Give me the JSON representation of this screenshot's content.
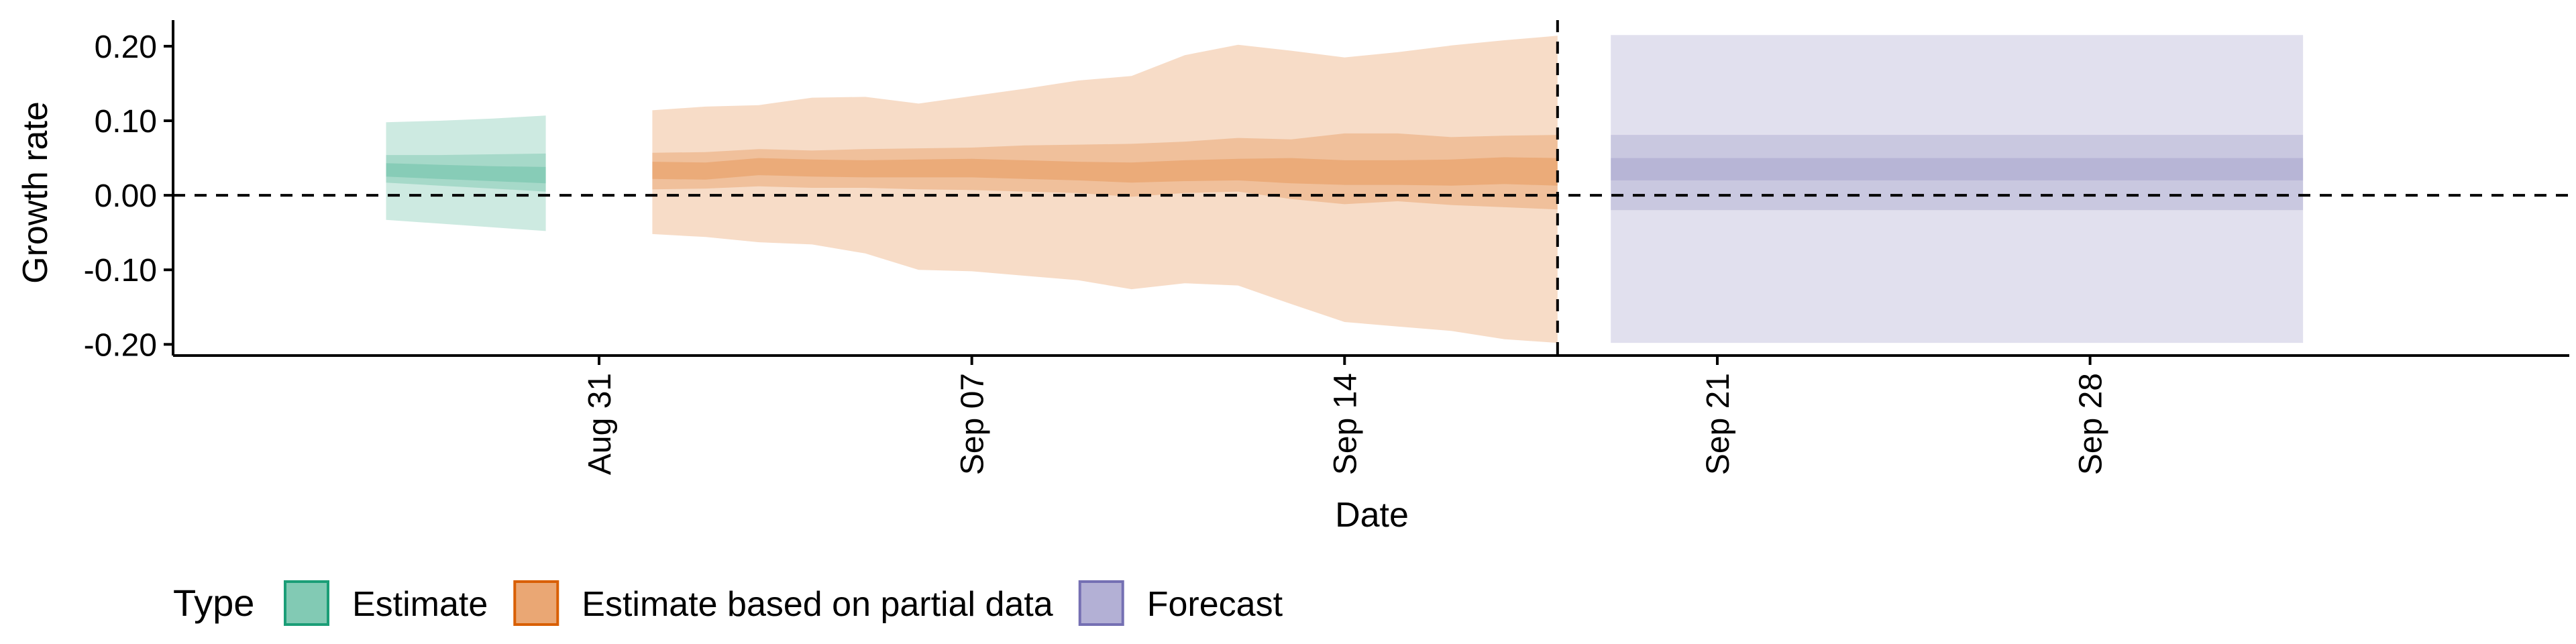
{
  "chart_data": {
    "type": "area",
    "ylabel": "Growth rate",
    "xlabel": "Date",
    "ylim": [
      -0.215,
      0.235
    ],
    "xlim": [
      "2021-08-23",
      "2021-10-07"
    ],
    "yticks": [
      {
        "value": 0.2,
        "label": "0.20"
      },
      {
        "value": 0.1,
        "label": "0.10"
      },
      {
        "value": 0.0,
        "label": "0.00"
      },
      {
        "value": -0.1,
        "label": "-0.10"
      },
      {
        "value": -0.2,
        "label": "-0.20"
      }
    ],
    "xticks": [
      {
        "date": "2021-08-31",
        "label": "Aug 31"
      },
      {
        "date": "2021-09-07",
        "label": "Sep 07"
      },
      {
        "date": "2021-09-14",
        "label": "Sep 14"
      },
      {
        "date": "2021-09-21",
        "label": "Sep 21"
      },
      {
        "date": "2021-09-28",
        "label": "Sep 28"
      }
    ],
    "reference_lines": {
      "horizontal_y": 0.0,
      "vertical_date": "2021-09-18",
      "style": "dashed"
    },
    "grid": false,
    "legend": {
      "title": "Type",
      "position": "bottom-left",
      "entries": [
        {
          "label": "Estimate",
          "color": "#1b9e77"
        },
        {
          "label": "Estimate based on partial data",
          "color": "#d95f02"
        },
        {
          "label": "Forecast",
          "color": "#7570b3"
        }
      ]
    },
    "series": [
      {
        "name": "Estimate",
        "color": "#1b9e77",
        "points": [
          {
            "date": "2021-08-27",
            "lower90": -0.033,
            "lower50": 0.017,
            "lower20": 0.025,
            "median": 0.034,
            "upper20": 0.043,
            "upper50": 0.054,
            "upper90": 0.098
          },
          {
            "date": "2021-08-28",
            "lower90": -0.038,
            "lower50": 0.013,
            "lower20": 0.022,
            "median": 0.032,
            "upper20": 0.041,
            "upper50": 0.054,
            "upper90": 0.1
          },
          {
            "date": "2021-08-29",
            "lower90": -0.043,
            "lower50": 0.009,
            "lower20": 0.019,
            "median": 0.029,
            "upper20": 0.039,
            "upper50": 0.055,
            "upper90": 0.103
          },
          {
            "date": "2021-08-30",
            "lower90": -0.048,
            "lower50": 0.005,
            "lower20": 0.016,
            "median": 0.027,
            "upper20": 0.038,
            "upper50": 0.056,
            "upper90": 0.107
          }
        ]
      },
      {
        "name": "Estimate based on partial data",
        "color": "#d95f02",
        "points": [
          {
            "date": "2021-09-01",
            "lower90": -0.052,
            "lower50": 0.008,
            "lower20": 0.022,
            "median": 0.034,
            "upper20": 0.045,
            "upper50": 0.057,
            "upper90": 0.114
          },
          {
            "date": "2021-09-02",
            "lower90": -0.056,
            "lower50": 0.009,
            "lower20": 0.021,
            "median": 0.033,
            "upper20": 0.044,
            "upper50": 0.058,
            "upper90": 0.119
          },
          {
            "date": "2021-09-03",
            "lower90": -0.063,
            "lower50": 0.012,
            "lower20": 0.027,
            "median": 0.04,
            "upper20": 0.05,
            "upper50": 0.062,
            "upper90": 0.121
          },
          {
            "date": "2021-09-04",
            "lower90": -0.066,
            "lower50": 0.01,
            "lower20": 0.025,
            "median": 0.038,
            "upper20": 0.048,
            "upper50": 0.06,
            "upper90": 0.131
          },
          {
            "date": "2021-09-05",
            "lower90": -0.078,
            "lower50": 0.01,
            "lower20": 0.024,
            "median": 0.037,
            "upper20": 0.047,
            "upper50": 0.062,
            "upper90": 0.132
          },
          {
            "date": "2021-09-06",
            "lower90": -0.1,
            "lower50": 0.008,
            "lower20": 0.024,
            "median": 0.036,
            "upper20": 0.048,
            "upper50": 0.063,
            "upper90": 0.123
          },
          {
            "date": "2021-09-07",
            "lower90": -0.102,
            "lower50": 0.007,
            "lower20": 0.024,
            "median": 0.037,
            "upper20": 0.049,
            "upper50": 0.064,
            "upper90": 0.133
          },
          {
            "date": "2021-09-08",
            "lower90": -0.108,
            "lower50": 0.005,
            "lower20": 0.022,
            "median": 0.035,
            "upper20": 0.047,
            "upper50": 0.067,
            "upper90": 0.143
          },
          {
            "date": "2021-09-09",
            "lower90": -0.114,
            "lower50": 0.003,
            "lower20": 0.02,
            "median": 0.032,
            "upper20": 0.045,
            "upper50": 0.068,
            "upper90": 0.154
          },
          {
            "date": "2021-09-10",
            "lower90": -0.126,
            "lower50": -0.002,
            "lower20": 0.017,
            "median": 0.03,
            "upper20": 0.044,
            "upper50": 0.069,
            "upper90": 0.16
          },
          {
            "date": "2021-09-11",
            "lower90": -0.118,
            "lower50": 0.003,
            "lower20": 0.019,
            "median": 0.033,
            "upper20": 0.047,
            "upper50": 0.072,
            "upper90": 0.188
          },
          {
            "date": "2021-09-12",
            "lower90": -0.121,
            "lower50": 0.005,
            "lower20": 0.02,
            "median": 0.035,
            "upper20": 0.049,
            "upper50": 0.077,
            "upper90": 0.202
          },
          {
            "date": "2021-09-13",
            "lower90": -0.146,
            "lower50": -0.005,
            "lower20": 0.016,
            "median": 0.033,
            "upper20": 0.05,
            "upper50": 0.075,
            "upper90": 0.194
          },
          {
            "date": "2021-09-14",
            "lower90": -0.17,
            "lower50": -0.012,
            "lower20": 0.014,
            "median": 0.031,
            "upper20": 0.047,
            "upper50": 0.083,
            "upper90": 0.185
          },
          {
            "date": "2021-09-15",
            "lower90": -0.176,
            "lower50": -0.008,
            "lower20": 0.014,
            "median": 0.031,
            "upper20": 0.047,
            "upper50": 0.083,
            "upper90": 0.192
          },
          {
            "date": "2021-09-16",
            "lower90": -0.182,
            "lower50": -0.013,
            "lower20": 0.013,
            "median": 0.031,
            "upper20": 0.048,
            "upper50": 0.078,
            "upper90": 0.201
          },
          {
            "date": "2021-09-17",
            "lower90": -0.193,
            "lower50": -0.016,
            "lower20": 0.015,
            "median": 0.033,
            "upper20": 0.051,
            "upper50": 0.08,
            "upper90": 0.208
          },
          {
            "date": "2021-09-18",
            "lower90": -0.198,
            "lower50": -0.019,
            "lower20": 0.013,
            "median": 0.031,
            "upper20": 0.05,
            "upper50": 0.081,
            "upper90": 0.214
          }
        ]
      },
      {
        "name": "Forecast",
        "color": "#7570b3",
        "points": [
          {
            "date": "2021-09-19",
            "lower90": -0.198,
            "lower50": -0.02,
            "lower20": 0.02,
            "median": 0.035,
            "upper20": 0.05,
            "upper50": 0.081,
            "upper90": 0.215
          },
          {
            "date": "2021-10-02",
            "lower90": -0.198,
            "lower50": -0.02,
            "lower20": 0.02,
            "median": 0.035,
            "upper20": 0.05,
            "upper50": 0.081,
            "upper90": 0.215
          }
        ]
      }
    ]
  }
}
